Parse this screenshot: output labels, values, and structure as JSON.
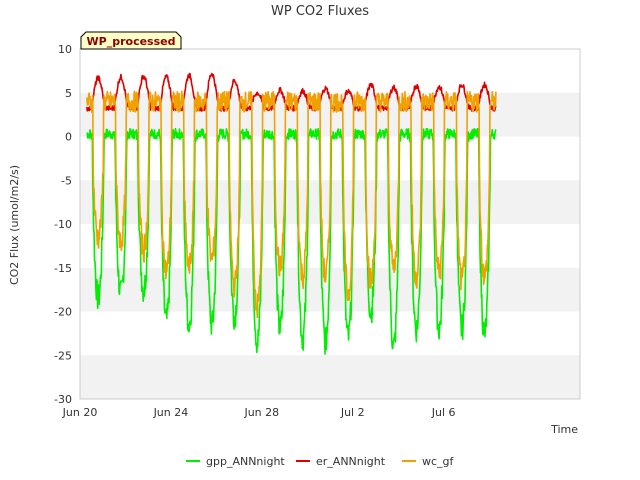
{
  "chart_data": {
    "type": "line",
    "title": "WP CO2 Fluxes",
    "badge": "WP_processed",
    "xlabel": "Time",
    "ylabel": "CO2 Flux (umol/m2/s)",
    "xlim": [
      0,
      22
    ],
    "ylim": [
      -30,
      10
    ],
    "grid": "horizontal bands",
    "legend_position": "bottom",
    "x_ticks": [
      {
        "value": 0,
        "label": "Jun 20"
      },
      {
        "value": 4,
        "label": "Jun 24"
      },
      {
        "value": 8,
        "label": "Jun 28"
      },
      {
        "value": 12,
        "label": "Jul 2"
      },
      {
        "value": 16,
        "label": "Jul 6"
      }
    ],
    "y_ticks": [
      {
        "value": 10,
        "label": "10"
      },
      {
        "value": 5,
        "label": "5"
      },
      {
        "value": 0,
        "label": "0"
      },
      {
        "value": -5,
        "label": "-5"
      },
      {
        "value": -10,
        "label": "-10"
      },
      {
        "value": -15,
        "label": "-15"
      },
      {
        "value": -20,
        "label": "-20"
      },
      {
        "value": -25,
        "label": "-25"
      },
      {
        "value": -30,
        "label": "-30"
      }
    ],
    "days": [
      0.3,
      1.3,
      2.3,
      3.3,
      4.3,
      5.3,
      6.3,
      7.3,
      8.3,
      9.3,
      10.3,
      11.3,
      12.3,
      13.3,
      14.3,
      15.3,
      16.3,
      17.3
    ],
    "series": [
      {
        "name": "gpp_ANNnight",
        "color": "#00ee00",
        "night_level": 0,
        "daily_min": [
          -18.5,
          -18,
          -17.5,
          -21,
          -21.5,
          -21.5,
          -20.5,
          -23.5,
          -22,
          -23,
          -23.5,
          -23,
          -20,
          -24,
          -22,
          -22,
          -22,
          -22.5
        ]
      },
      {
        "name": "er_ANNnight",
        "color": "#dd0000",
        "night_level": 3.5,
        "daily_max": [
          6.7,
          6.8,
          6.9,
          6.8,
          7.0,
          7.2,
          6.4,
          5.0,
          5.3,
          5.2,
          5.5,
          5.2,
          5.9,
          5.6,
          5.8,
          5.7,
          5.9,
          5.9
        ]
      },
      {
        "name": "wc_gf",
        "color": "#f0a000",
        "night_level": 3.5,
        "daily_min": [
          -11.5,
          -12,
          -13,
          -15.5,
          -15,
          -14,
          -17,
          -19.5,
          -15,
          -16,
          -16,
          -18,
          -16.5,
          -15,
          -16,
          -15.5,
          -16.5,
          -16
        ]
      }
    ]
  }
}
